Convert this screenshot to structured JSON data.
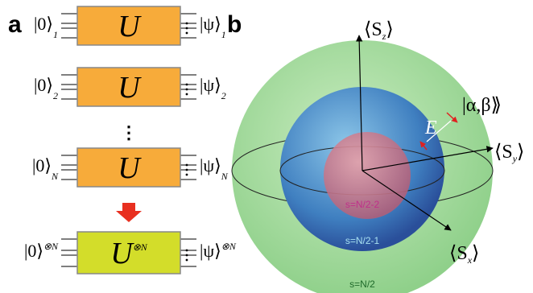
{
  "panel_a": {
    "label": "a",
    "rows": [
      {
        "input": "|0⟩",
        "input_sub": "1",
        "gate": "U",
        "output": "|ψ⟩",
        "output_sub": "1"
      },
      {
        "input": "|0⟩",
        "input_sub": "2",
        "gate": "U",
        "output": "|ψ⟩",
        "output_sub": "2"
      },
      {
        "input": "|0⟩",
        "input_sub": "N",
        "gate": "U",
        "output": "|ψ⟩",
        "output_sub": "N"
      }
    ],
    "ellipsis": "⋮",
    "combined": {
      "input": "|0⟩",
      "input_sup": "⊗N",
      "gate": "U",
      "gate_sup": "⊗N",
      "output": "|ψ⟩",
      "output_sup": "⊗N"
    }
  },
  "panel_b": {
    "label": "b",
    "axes": {
      "z": {
        "open": "⟨S",
        "sub": "z",
        "close": "⟩"
      },
      "y": {
        "open": "⟨S",
        "sub": "y",
        "close": "⟩"
      },
      "x": {
        "open": "⟨S",
        "sub": "x",
        "close": "⟩"
      }
    },
    "energy": "E",
    "state": "|α,β⟫",
    "shells": [
      "s=N/2-2",
      "s=N/2-1",
      "s=N/2"
    ]
  }
}
